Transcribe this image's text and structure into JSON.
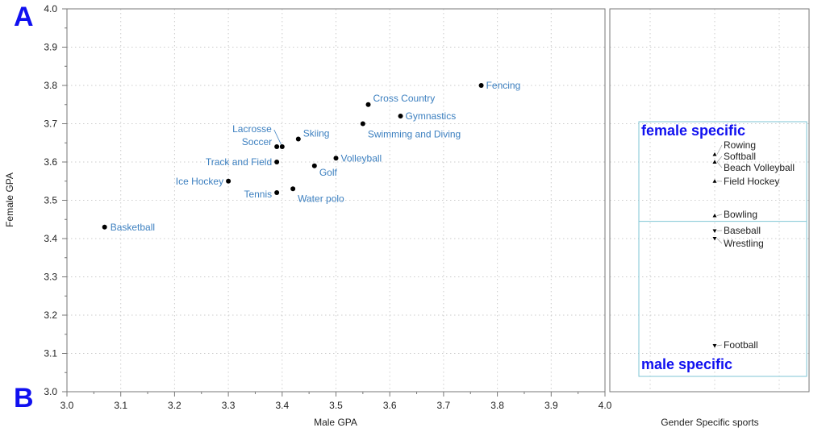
{
  "colors": {
    "label": "#3d80c0",
    "point": "#000000",
    "panel_letter": "#1010f0",
    "region_box": "#7fc6d4"
  },
  "panel_letters": {
    "a": "A",
    "b": "B"
  },
  "chart_data": [
    {
      "type": "scatter",
      "xlabel": "Male GPA",
      "ylabel": "Female GPA",
      "xlim": [
        3.0,
        4.0
      ],
      "ylim": [
        3.0,
        4.0
      ],
      "grid": true,
      "xticks": [
        "3.0",
        "3.1",
        "3.2",
        "3.3",
        "3.4",
        "3.5",
        "3.6",
        "3.7",
        "3.8",
        "3.9",
        "4.0"
      ],
      "yticks": [
        "3.0",
        "3.1",
        "3.2",
        "3.3",
        "3.4",
        "3.5",
        "3.6",
        "3.7",
        "3.8",
        "3.9",
        "4.0"
      ],
      "points": [
        {
          "label": "Basketball",
          "x": 3.07,
          "y": 3.43
        },
        {
          "label": "Ice Hockey",
          "x": 3.3,
          "y": 3.55
        },
        {
          "label": "Tennis",
          "x": 3.39,
          "y": 3.52
        },
        {
          "label": "Track and Field",
          "x": 3.39,
          "y": 3.6
        },
        {
          "label": "Soccer",
          "x": 3.39,
          "y": 3.64
        },
        {
          "label": "Lacrosse",
          "x": 3.4,
          "y": 3.64
        },
        {
          "label": "Water polo",
          "x": 3.42,
          "y": 3.53
        },
        {
          "label": "Skiing",
          "x": 3.43,
          "y": 3.66
        },
        {
          "label": "Golf",
          "x": 3.46,
          "y": 3.59
        },
        {
          "label": "Volleyball",
          "x": 3.5,
          "y": 3.61
        },
        {
          "label": "Swimming and Diving",
          "x": 3.55,
          "y": 3.7
        },
        {
          "label": "Cross Country",
          "x": 3.56,
          "y": 3.75
        },
        {
          "label": "Gymnastics",
          "x": 3.62,
          "y": 3.72
        },
        {
          "label": "Fencing",
          "x": 3.77,
          "y": 3.8
        }
      ]
    },
    {
      "type": "scatter",
      "xlabel": "Gender Specific sports",
      "ylim": [
        3.0,
        4.0
      ],
      "grid": true,
      "divider_gpa": 3.445,
      "regions": {
        "female": "female specific",
        "male": "male specific"
      },
      "points": [
        {
          "label": "Rowing",
          "y": 3.62,
          "group": "female"
        },
        {
          "label": "Softball",
          "y": 3.6,
          "group": "female"
        },
        {
          "label": "Beach Volleyball",
          "y": 3.6,
          "group": "female"
        },
        {
          "label": "Field Hockey",
          "y": 3.55,
          "group": "female"
        },
        {
          "label": "Bowling",
          "y": 3.46,
          "group": "female"
        },
        {
          "label": "Baseball",
          "y": 3.42,
          "group": "male"
        },
        {
          "label": "Wrestling",
          "y": 3.4,
          "group": "male"
        },
        {
          "label": "Football",
          "y": 3.12,
          "group": "male"
        }
      ]
    }
  ]
}
